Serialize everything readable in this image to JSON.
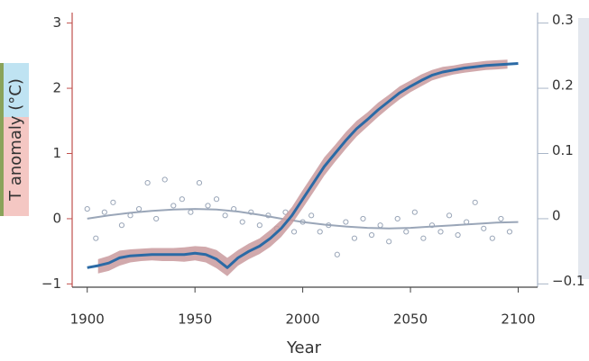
{
  "chart_data": {
    "type": "line",
    "x_label": "Year",
    "y_label": "T anomaly (°C)",
    "xlim": [
      1893,
      2109
    ],
    "xticks": [
      1900,
      1950,
      2000,
      2050,
      2100
    ],
    "ylim": [
      -1.05,
      3.05
    ],
    "yticks": [
      {
        "value": -1,
        "label": "−1"
      },
      0,
      1,
      2,
      3
    ],
    "y2lim": [
      -0.105,
      0.305
    ],
    "y2ticks": [
      {
        "value": -0.1,
        "label": "−0.1"
      },
      0,
      0.1,
      0.2,
      0.3
    ],
    "line_x": [
      1900,
      1905,
      1910,
      1915,
      1920,
      1925,
      1930,
      1935,
      1940,
      1945,
      1950,
      1955,
      1960,
      1965,
      1970,
      1975,
      1980,
      1985,
      1990,
      1995,
      2000,
      2005,
      2010,
      2015,
      2020,
      2025,
      2030,
      2035,
      2040,
      2045,
      2050,
      2055,
      2060,
      2065,
      2070,
      2075,
      2080,
      2085,
      2090,
      2095,
      2100
    ],
    "series": [
      {
        "color": "#2b6aa5",
        "values": [
          -0.75,
          -0.72,
          -0.68,
          -0.6,
          -0.57,
          -0.56,
          -0.55,
          -0.55,
          -0.55,
          -0.55,
          -0.53,
          -0.55,
          -0.62,
          -0.75,
          -0.6,
          -0.5,
          -0.42,
          -0.3,
          -0.15,
          0.05,
          0.3,
          0.55,
          0.8,
          1.0,
          1.2,
          1.38,
          1.52,
          1.67,
          1.8,
          1.93,
          2.03,
          2.12,
          2.2,
          2.25,
          2.28,
          2.31,
          2.33,
          2.35,
          2.36,
          2.37,
          2.38
        ],
        "band_color": "#c99a9d",
        "lower": [
          null,
          -0.84,
          -0.8,
          -0.72,
          -0.67,
          -0.65,
          -0.64,
          -0.65,
          -0.65,
          -0.66,
          -0.64,
          -0.67,
          -0.76,
          -0.88,
          -0.72,
          -0.62,
          -0.54,
          -0.43,
          -0.28,
          -0.08,
          0.16,
          0.41,
          0.66,
          0.87,
          1.07,
          1.26,
          1.41,
          1.56,
          1.7,
          1.83,
          1.94,
          2.03,
          2.12,
          2.17,
          2.21,
          2.24,
          2.26,
          2.28,
          2.29,
          2.3,
          null
        ],
        "upper": [
          null,
          -0.62,
          -0.57,
          -0.49,
          -0.47,
          -0.46,
          -0.45,
          -0.45,
          -0.45,
          -0.44,
          -0.42,
          -0.43,
          -0.48,
          -0.6,
          -0.48,
          -0.38,
          -0.3,
          -0.17,
          -0.02,
          0.18,
          0.44,
          0.69,
          0.94,
          1.13,
          1.33,
          1.5,
          1.63,
          1.78,
          1.9,
          2.03,
          2.12,
          2.21,
          2.28,
          2.33,
          2.35,
          2.38,
          2.4,
          2.42,
          2.43,
          2.44,
          null
        ]
      }
    ],
    "trend_x": [
      1900,
      1910,
      1920,
      1930,
      1940,
      1950,
      1960,
      1970,
      1980,
      1990,
      2000,
      2010,
      2020,
      2030,
      2040,
      2050,
      2060,
      2070,
      2080,
      2090,
      2100
    ],
    "trend": {
      "color": "#9aa6b8",
      "values": [
        0.0,
        0.05,
        0.09,
        0.12,
        0.14,
        0.15,
        0.14,
        0.11,
        0.06,
        0.0,
        -0.05,
        -0.09,
        -0.12,
        -0.14,
        -0.15,
        -0.14,
        -0.12,
        -0.1,
        -0.08,
        -0.06,
        -0.05
      ]
    },
    "scatter": {
      "color": "#9aa6b8",
      "x": [
        1900,
        1904,
        1908,
        1912,
        1916,
        1920,
        1924,
        1928,
        1932,
        1936,
        1940,
        1944,
        1948,
        1952,
        1956,
        1960,
        1964,
        1968,
        1972,
        1976,
        1980,
        1984,
        1988,
        1992,
        1996,
        2000,
        2004,
        2008,
        2012,
        2016,
        2020,
        2024,
        2028,
        2032,
        2036,
        2040,
        2044,
        2048,
        2052,
        2056,
        2060,
        2064,
        2068,
        2072,
        2076,
        2080,
        2084,
        2088,
        2092,
        2096
      ],
      "y": [
        0.15,
        -0.3,
        0.1,
        0.25,
        -0.1,
        0.05,
        0.15,
        0.55,
        0.0,
        0.6,
        0.2,
        0.3,
        0.1,
        0.55,
        0.2,
        0.3,
        0.05,
        0.15,
        -0.05,
        0.1,
        -0.1,
        0.05,
        -0.15,
        0.1,
        -0.2,
        -0.05,
        0.05,
        -0.2,
        -0.1,
        -0.55,
        -0.05,
        -0.3,
        0.0,
        -0.25,
        -0.1,
        -0.35,
        0.0,
        -0.2,
        0.1,
        -0.3,
        -0.1,
        -0.2,
        0.05,
        -0.25,
        -0.05,
        0.25,
        -0.15,
        -0.3,
        0.0,
        -0.2
      ]
    },
    "left_axis_color": "#c0504d",
    "right_axis_color": "#a9b6c8"
  }
}
